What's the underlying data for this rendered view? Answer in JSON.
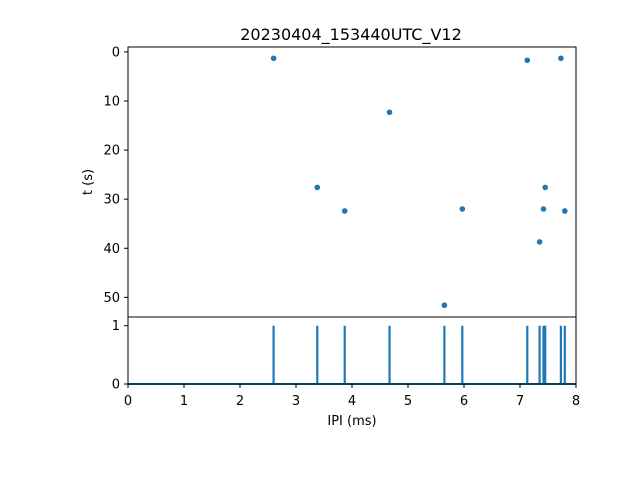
{
  "chart_data": [
    {
      "type": "scatter",
      "title": "20230404_153440UTC_V12",
      "xlabel": "",
      "ylabel": "t (s)",
      "xlim": [
        0,
        8
      ],
      "ylim": [
        54,
        -1
      ],
      "y_inverted": true,
      "yticks": [
        "0",
        "10",
        "20",
        "30",
        "40",
        "50"
      ],
      "color": "#1f77b4",
      "points": [
        {
          "x": 2.6,
          "y": 1.3
        },
        {
          "x": 3.38,
          "y": 27.6
        },
        {
          "x": 3.87,
          "y": 32.4
        },
        {
          "x": 4.67,
          "y": 12.3
        },
        {
          "x": 5.65,
          "y": 51.6
        },
        {
          "x": 5.97,
          "y": 32.0
        },
        {
          "x": 7.13,
          "y": 1.7
        },
        {
          "x": 7.35,
          "y": 38.7
        },
        {
          "x": 7.42,
          "y": 32.0
        },
        {
          "x": 7.45,
          "y": 27.6
        },
        {
          "x": 7.73,
          "y": 1.3
        },
        {
          "x": 7.8,
          "y": 32.4
        }
      ]
    },
    {
      "type": "line",
      "xlabel": "IPI (ms)",
      "ylabel": "",
      "xlim": [
        0,
        8
      ],
      "ylim": [
        0,
        1.15
      ],
      "xticks": [
        "0",
        "1",
        "2",
        "3",
        "4",
        "5",
        "6",
        "7",
        "8"
      ],
      "yticks": [
        "0",
        "1"
      ],
      "color": "#1f77b4",
      "baseline": 0,
      "spikes": [
        {
          "x": 2.6,
          "y": 1
        },
        {
          "x": 3.38,
          "y": 1
        },
        {
          "x": 3.87,
          "y": 1
        },
        {
          "x": 4.67,
          "y": 1
        },
        {
          "x": 5.65,
          "y": 1
        },
        {
          "x": 5.97,
          "y": 1
        },
        {
          "x": 7.13,
          "y": 1
        },
        {
          "x": 7.35,
          "y": 1
        },
        {
          "x": 7.42,
          "y": 1
        },
        {
          "x": 7.45,
          "y": 1
        },
        {
          "x": 7.73,
          "y": 1
        },
        {
          "x": 7.8,
          "y": 1
        }
      ]
    }
  ]
}
